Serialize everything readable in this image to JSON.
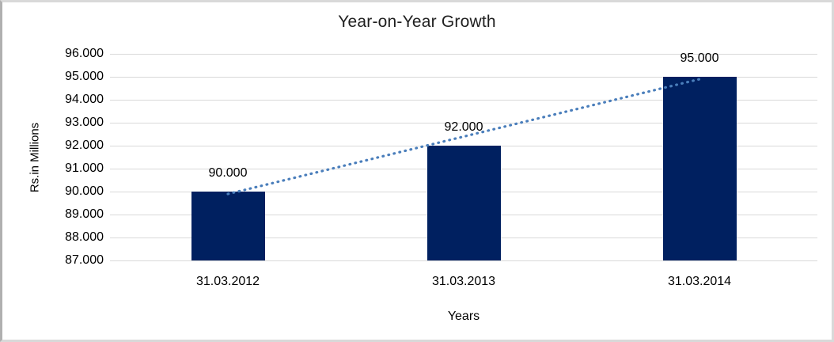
{
  "chart_data": {
    "type": "bar",
    "title": "Year-on-Year Growth",
    "xlabel": "Years",
    "ylabel": "Rs.in Millions",
    "categories": [
      "31.03.2012",
      "31.03.2013",
      "31.03.2014"
    ],
    "values": [
      90000,
      92000,
      95000
    ],
    "data_labels": [
      "90.000",
      "92.000",
      "95.000"
    ],
    "y_ticks": [
      "96.000",
      "95.000",
      "94.000",
      "93.000",
      "92.000",
      "91.000",
      "90.000",
      "89.000",
      "88.000",
      "87.000"
    ],
    "y_tick_values": [
      96000,
      95000,
      94000,
      93000,
      92000,
      91000,
      90000,
      89000,
      88000,
      87000
    ],
    "ylim": [
      87000,
      96000
    ],
    "grid": "horizontal",
    "legend": "none",
    "trendline": {
      "type": "linear",
      "style": "dotted"
    },
    "colors": {
      "bar": "#002060",
      "trendline": "#4a7ebb",
      "gridline": "#d9d9d9",
      "text": "#000000",
      "title_text": "#1f1f1f",
      "background": "#ffffff",
      "frame_border": "#d9d9d9"
    }
  }
}
